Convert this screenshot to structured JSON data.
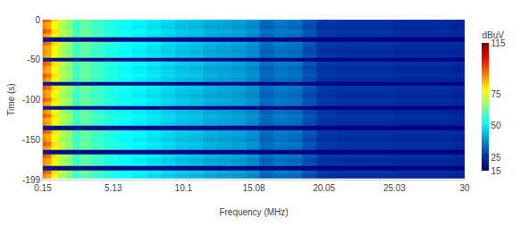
{
  "chart_data": {
    "type": "heatmap",
    "x_label": "Frequency (MHz)",
    "y_label": "Time (s)",
    "colorbar_title": "dBuV",
    "x": [
      0.15,
      0.5,
      1,
      1.5,
      2,
      2.5,
      3,
      4,
      5,
      6,
      7,
      8,
      9,
      10,
      11,
      12,
      13,
      14,
      15,
      16,
      17,
      18,
      19,
      20,
      22,
      24,
      26,
      28,
      30
    ],
    "y": [
      0,
      -5,
      -10,
      -15,
      -20,
      -25,
      -30,
      -35,
      -40,
      -45,
      -50,
      -55,
      -60,
      -65,
      -70,
      -75,
      -80,
      -85,
      -90,
      -95,
      -100,
      -105,
      -110,
      -115,
      -120,
      -125,
      -130,
      -135,
      -140,
      -145,
      -150,
      -155,
      -160,
      -165,
      -170,
      -175,
      -180,
      -185,
      -190,
      -195
    ],
    "z": [
      [
        95,
        92,
        80,
        71,
        67,
        59,
        63,
        59,
        56,
        54,
        52,
        50,
        48,
        46,
        45,
        43,
        42,
        41,
        39,
        34,
        36,
        35,
        31,
        27,
        26,
        26,
        25,
        25,
        24
      ],
      [
        88,
        85,
        78,
        70,
        66,
        58,
        62,
        58,
        55,
        53,
        51,
        49,
        47,
        45,
        44,
        42,
        41,
        40,
        38,
        33,
        35,
        34,
        30,
        26,
        25,
        25,
        24,
        24,
        23
      ],
      [
        90,
        86,
        76,
        68,
        64,
        57,
        61,
        57,
        54,
        52,
        50,
        48,
        46,
        44,
        43,
        41,
        40,
        39,
        37,
        32,
        34,
        33,
        29,
        25,
        24,
        24,
        23,
        23,
        22
      ],
      [
        95,
        92,
        80,
        71,
        67,
        59,
        63,
        59,
        56,
        54,
        52,
        50,
        48,
        46,
        45,
        43,
        42,
        41,
        39,
        34,
        36,
        35,
        31,
        27,
        26,
        26,
        25,
        25,
        24
      ],
      [
        88,
        85,
        78,
        70,
        66,
        58,
        62,
        58,
        55,
        53,
        51,
        49,
        47,
        45,
        44,
        42,
        41,
        40,
        38,
        33,
        35,
        34,
        30,
        26,
        25,
        25,
        24,
        24,
        23
      ],
      [
        22,
        20,
        19,
        18,
        18,
        18,
        18,
        17,
        17,
        17,
        17,
        17,
        17,
        16,
        16,
        16,
        16,
        16,
        16,
        16,
        16,
        16,
        15,
        15,
        15,
        15,
        15,
        15,
        15
      ],
      [
        95,
        92,
        80,
        71,
        67,
        59,
        63,
        59,
        56,
        54,
        52,
        50,
        48,
        46,
        45,
        43,
        42,
        41,
        39,
        34,
        36,
        35,
        31,
        27,
        26,
        26,
        25,
        25,
        24
      ],
      [
        88,
        85,
        78,
        70,
        66,
        58,
        62,
        58,
        55,
        53,
        51,
        49,
        47,
        45,
        44,
        42,
        41,
        40,
        38,
        33,
        35,
        34,
        30,
        26,
        25,
        25,
        24,
        24,
        23
      ],
      [
        90,
        86,
        76,
        68,
        64,
        57,
        61,
        57,
        54,
        52,
        50,
        48,
        46,
        44,
        43,
        41,
        40,
        39,
        37,
        32,
        34,
        33,
        29,
        25,
        24,
        24,
        23,
        23,
        22
      ],
      [
        88,
        85,
        78,
        70,
        66,
        58,
        62,
        58,
        55,
        53,
        51,
        49,
        47,
        45,
        44,
        42,
        41,
        40,
        38,
        33,
        35,
        34,
        30,
        26,
        25,
        25,
        24,
        24,
        23
      ],
      [
        22,
        20,
        19,
        18,
        18,
        18,
        18,
        17,
        17,
        17,
        17,
        17,
        17,
        16,
        16,
        16,
        16,
        16,
        16,
        16,
        16,
        16,
        15,
        15,
        15,
        15,
        15,
        15,
        15
      ],
      [
        95,
        92,
        80,
        71,
        67,
        59,
        63,
        59,
        56,
        54,
        52,
        50,
        48,
        46,
        45,
        43,
        42,
        41,
        39,
        34,
        36,
        35,
        31,
        27,
        26,
        26,
        25,
        25,
        24
      ],
      [
        90,
        86,
        76,
        68,
        64,
        57,
        61,
        57,
        54,
        52,
        50,
        48,
        46,
        44,
        43,
        41,
        40,
        39,
        37,
        32,
        34,
        33,
        29,
        25,
        24,
        24,
        23,
        23,
        22
      ],
      [
        88,
        85,
        78,
        70,
        66,
        58,
        62,
        58,
        55,
        53,
        51,
        49,
        47,
        45,
        44,
        42,
        41,
        40,
        38,
        33,
        35,
        34,
        30,
        26,
        25,
        25,
        24,
        24,
        23
      ],
      [
        95,
        92,
        80,
        71,
        67,
        59,
        63,
        59,
        56,
        54,
        52,
        50,
        48,
        46,
        45,
        43,
        42,
        41,
        39,
        34,
        36,
        35,
        31,
        27,
        26,
        26,
        25,
        25,
        24
      ],
      [
        90,
        86,
        76,
        68,
        64,
        57,
        61,
        57,
        54,
        52,
        50,
        48,
        46,
        44,
        43,
        41,
        40,
        39,
        37,
        32,
        34,
        33,
        29,
        25,
        24,
        24,
        23,
        23,
        22
      ],
      [
        22,
        20,
        19,
        18,
        18,
        18,
        18,
        17,
        17,
        17,
        17,
        17,
        17,
        16,
        16,
        16,
        16,
        16,
        16,
        16,
        16,
        16,
        15,
        15,
        15,
        15,
        15,
        15,
        15
      ],
      [
        95,
        92,
        80,
        71,
        67,
        59,
        63,
        59,
        56,
        54,
        52,
        50,
        48,
        46,
        45,
        43,
        42,
        41,
        39,
        34,
        36,
        35,
        31,
        27,
        26,
        26,
        25,
        25,
        24
      ],
      [
        88,
        85,
        78,
        70,
        66,
        58,
        62,
        58,
        55,
        53,
        51,
        49,
        47,
        45,
        44,
        42,
        41,
        40,
        38,
        33,
        35,
        34,
        30,
        26,
        25,
        25,
        24,
        24,
        23
      ],
      [
        90,
        86,
        76,
        68,
        64,
        57,
        61,
        57,
        54,
        52,
        50,
        48,
        46,
        44,
        43,
        41,
        40,
        39,
        37,
        32,
        34,
        33,
        29,
        25,
        24,
        24,
        23,
        23,
        22
      ],
      [
        95,
        92,
        80,
        71,
        67,
        59,
        63,
        59,
        56,
        54,
        52,
        50,
        48,
        46,
        45,
        43,
        42,
        41,
        39,
        34,
        36,
        35,
        31,
        27,
        26,
        26,
        25,
        25,
        24
      ],
      [
        88,
        85,
        78,
        70,
        66,
        58,
        62,
        58,
        55,
        53,
        51,
        49,
        47,
        45,
        44,
        42,
        41,
        40,
        38,
        33,
        35,
        34,
        30,
        26,
        25,
        25,
        24,
        24,
        23
      ],
      [
        22,
        20,
        19,
        18,
        18,
        18,
        18,
        17,
        17,
        17,
        17,
        17,
        17,
        16,
        16,
        16,
        16,
        16,
        16,
        16,
        16,
        16,
        15,
        15,
        15,
        15,
        15,
        15,
        15
      ],
      [
        90,
        86,
        76,
        68,
        64,
        57,
        61,
        57,
        54,
        52,
        50,
        48,
        46,
        44,
        43,
        41,
        40,
        39,
        37,
        32,
        34,
        33,
        29,
        25,
        24,
        24,
        23,
        23,
        22
      ],
      [
        95,
        92,
        80,
        71,
        67,
        59,
        63,
        59,
        56,
        54,
        52,
        50,
        48,
        46,
        45,
        43,
        42,
        41,
        39,
        34,
        36,
        35,
        31,
        27,
        26,
        26,
        25,
        25,
        24
      ],
      [
        88,
        85,
        78,
        70,
        66,
        58,
        62,
        58,
        55,
        53,
        51,
        49,
        47,
        45,
        44,
        42,
        41,
        40,
        38,
        33,
        35,
        34,
        30,
        26,
        25,
        25,
        24,
        24,
        23
      ],
      [
        90,
        86,
        76,
        68,
        64,
        57,
        61,
        57,
        54,
        52,
        50,
        48,
        46,
        44,
        43,
        41,
        40,
        39,
        37,
        32,
        34,
        33,
        29,
        25,
        24,
        24,
        23,
        23,
        22
      ],
      [
        22,
        20,
        19,
        18,
        18,
        18,
        18,
        17,
        17,
        17,
        17,
        17,
        17,
        16,
        16,
        16,
        16,
        16,
        16,
        16,
        16,
        16,
        15,
        15,
        15,
        15,
        15,
        15,
        15
      ],
      [
        95,
        92,
        80,
        71,
        67,
        59,
        63,
        59,
        56,
        54,
        52,
        50,
        48,
        46,
        45,
        43,
        42,
        41,
        39,
        34,
        36,
        35,
        31,
        27,
        26,
        26,
        25,
        25,
        24
      ],
      [
        88,
        85,
        78,
        70,
        66,
        58,
        62,
        58,
        55,
        53,
        51,
        49,
        47,
        45,
        44,
        42,
        41,
        40,
        38,
        33,
        35,
        34,
        30,
        26,
        25,
        25,
        24,
        24,
        23
      ],
      [
        90,
        86,
        76,
        68,
        64,
        57,
        61,
        57,
        54,
        52,
        50,
        48,
        46,
        44,
        43,
        41,
        40,
        39,
        37,
        32,
        34,
        33,
        29,
        25,
        24,
        24,
        23,
        23,
        22
      ],
      [
        95,
        92,
        80,
        71,
        67,
        59,
        63,
        59,
        56,
        54,
        52,
        50,
        48,
        46,
        45,
        43,
        42,
        41,
        39,
        34,
        36,
        35,
        31,
        27,
        26,
        26,
        25,
        25,
        24
      ],
      [
        88,
        85,
        78,
        70,
        66,
        58,
        62,
        58,
        55,
        53,
        51,
        49,
        47,
        45,
        44,
        42,
        41,
        40,
        38,
        33,
        35,
        34,
        30,
        26,
        25,
        25,
        24,
        24,
        23
      ],
      [
        22,
        20,
        19,
        18,
        18,
        18,
        18,
        17,
        17,
        17,
        17,
        17,
        17,
        16,
        16,
        16,
        16,
        16,
        16,
        16,
        16,
        16,
        15,
        15,
        15,
        15,
        15,
        15,
        15
      ],
      [
        95,
        92,
        80,
        71,
        67,
        59,
        63,
        59,
        56,
        54,
        52,
        50,
        48,
        46,
        45,
        43,
        42,
        41,
        39,
        34,
        36,
        35,
        31,
        27,
        26,
        26,
        25,
        25,
        24
      ],
      [
        90,
        86,
        76,
        68,
        64,
        57,
        61,
        57,
        54,
        52,
        50,
        48,
        46,
        44,
        43,
        41,
        40,
        39,
        37,
        32,
        34,
        33,
        29,
        25,
        24,
        24,
        23,
        23,
        22
      ],
      [
        88,
        85,
        78,
        70,
        66,
        58,
        62,
        58,
        55,
        53,
        51,
        49,
        47,
        45,
        44,
        42,
        41,
        40,
        38,
        33,
        35,
        34,
        30,
        26,
        25,
        25,
        24,
        24,
        23
      ],
      [
        22,
        20,
        19,
        18,
        18,
        18,
        18,
        17,
        17,
        17,
        17,
        17,
        17,
        16,
        16,
        16,
        16,
        16,
        16,
        16,
        16,
        16,
        15,
        15,
        15,
        15,
        15,
        15,
        15
      ],
      [
        95,
        92,
        80,
        71,
        67,
        59,
        63,
        59,
        56,
        54,
        52,
        50,
        48,
        46,
        45,
        43,
        42,
        41,
        39,
        34,
        36,
        35,
        31,
        27,
        26,
        26,
        25,
        25,
        24
      ],
      [
        90,
        86,
        76,
        68,
        64,
        57,
        61,
        57,
        54,
        52,
        50,
        48,
        46,
        44,
        43,
        41,
        40,
        39,
        37,
        32,
        34,
        33,
        29,
        25,
        24,
        24,
        23,
        23,
        22
      ]
    ],
    "xlim": [
      0.15,
      30
    ],
    "xticks": [
      0.15,
      5.13,
      10.1,
      15.08,
      20.05,
      25.03,
      30
    ],
    "ylim": [
      -199,
      0
    ],
    "yticks": [
      0,
      -50,
      -100,
      -150,
      -199
    ],
    "zlim": [
      15,
      115
    ],
    "zticks": [
      15,
      25,
      50,
      75,
      115
    ],
    "grid": false
  }
}
